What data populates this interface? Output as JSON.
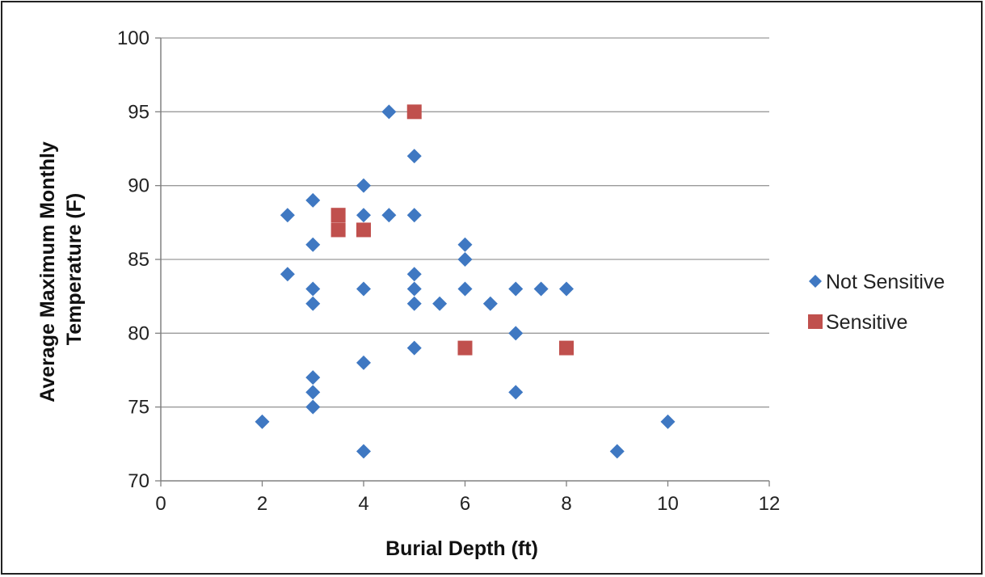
{
  "chart_data": {
    "type": "scatter",
    "xlabel": "Burial Depth (ft)",
    "ylabel_lines": [
      "Average Maximum Monthly",
      "Temperature (F)"
    ],
    "xlim": [
      0,
      12
    ],
    "ylim": [
      70,
      100
    ],
    "xticks": [
      0,
      2,
      4,
      6,
      8,
      10,
      12
    ],
    "yticks": [
      70,
      75,
      80,
      85,
      90,
      95,
      100
    ],
    "grid": "horizontal",
    "legend_position": "right",
    "series": [
      {
        "name": "Not Sensitive",
        "marker": "diamond",
        "color": "#3f78c2",
        "points": [
          [
            2,
            74
          ],
          [
            2.5,
            88
          ],
          [
            2.5,
            84
          ],
          [
            3,
            89
          ],
          [
            3,
            86
          ],
          [
            3,
            83
          ],
          [
            3,
            82
          ],
          [
            3,
            77
          ],
          [
            3,
            76
          ],
          [
            3,
            75
          ],
          [
            4,
            90
          ],
          [
            4,
            88
          ],
          [
            4,
            83
          ],
          [
            4,
            78
          ],
          [
            4,
            72
          ],
          [
            4.5,
            95
          ],
          [
            4.5,
            88
          ],
          [
            5,
            92
          ],
          [
            5,
            88
          ],
          [
            5,
            84
          ],
          [
            5,
            83
          ],
          [
            5,
            82
          ],
          [
            5,
            79
          ],
          [
            5.5,
            82
          ],
          [
            6,
            86
          ],
          [
            6,
            85
          ],
          [
            6,
            83
          ],
          [
            6.5,
            82
          ],
          [
            7,
            83
          ],
          [
            7,
            80
          ],
          [
            7,
            76
          ],
          [
            7.5,
            83
          ],
          [
            8,
            83
          ],
          [
            9,
            72
          ],
          [
            10,
            74
          ]
        ]
      },
      {
        "name": "Sensitive",
        "marker": "square",
        "color": "#c0504d",
        "points": [
          [
            3.5,
            88
          ],
          [
            3.5,
            87
          ],
          [
            4,
            87
          ],
          [
            5,
            95
          ],
          [
            6,
            79
          ],
          [
            8,
            79
          ]
        ]
      }
    ]
  }
}
